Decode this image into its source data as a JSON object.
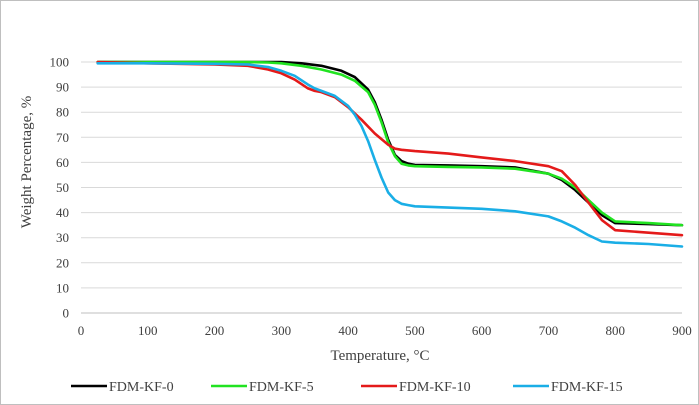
{
  "chart_data": {
    "type": "line",
    "title": "",
    "xlabel": "Temperature, °C",
    "ylabel": "Weight Percentage, %",
    "xlim": [
      0,
      900
    ],
    "ylim": [
      0,
      100
    ],
    "x_ticks": [
      0,
      100,
      200,
      300,
      400,
      500,
      600,
      700,
      800,
      900
    ],
    "y_ticks": [
      0,
      10,
      20,
      30,
      40,
      50,
      60,
      70,
      80,
      90,
      100
    ],
    "grid": "horizontal",
    "legend_position": "bottom",
    "series": [
      {
        "name": "FDM-KF-0",
        "color": "#000000",
        "x": [
          25,
          100,
          200,
          250,
          300,
          330,
          360,
          390,
          410,
          430,
          440,
          450,
          460,
          470,
          480,
          490,
          500,
          550,
          600,
          650,
          700,
          720,
          740,
          760,
          780,
          800,
          850,
          900
        ],
        "y": [
          100,
          100,
          100,
          100,
          100,
          99.5,
          98.5,
          96.5,
          94,
          89,
          84,
          77,
          69,
          63,
          60.5,
          59.5,
          59,
          58.8,
          58.5,
          58,
          55.5,
          53,
          49,
          44,
          39,
          35.8,
          35.4,
          35
        ]
      },
      {
        "name": "FDM-KF-5",
        "color": "#21e321",
        "x": [
          25,
          100,
          200,
          250,
          280,
          300,
          330,
          360,
          390,
          410,
          430,
          440,
          450,
          460,
          470,
          480,
          490,
          500,
          550,
          600,
          650,
          700,
          720,
          740,
          760,
          780,
          800,
          850,
          900
        ],
        "y": [
          100,
          100,
          100,
          100,
          99.8,
          99.5,
          98.5,
          97,
          95,
          92.5,
          88,
          83,
          76,
          68,
          62.5,
          59.5,
          58.8,
          58.5,
          58.2,
          58,
          57.5,
          55.5,
          53.5,
          50,
          45,
          40,
          36.5,
          35.8,
          35
        ]
      },
      {
        "name": "FDM-KF-10",
        "color": "#e41a1a",
        "x": [
          25,
          100,
          200,
          250,
          280,
          300,
          320,
          340,
          350,
          360,
          380,
          400,
          420,
          440,
          460,
          470,
          480,
          490,
          500,
          550,
          600,
          650,
          700,
          720,
          740,
          760,
          780,
          800,
          850,
          900
        ],
        "y": [
          100,
          99.5,
          99,
          98.5,
          97,
          95.5,
          93,
          89.5,
          88.5,
          88,
          86,
          82,
          77,
          71.5,
          67,
          65.5,
          65,
          64.8,
          64.5,
          63.5,
          62,
          60.5,
          58.5,
          56.5,
          51,
          44,
          37,
          33,
          32,
          31
        ]
      },
      {
        "name": "FDM-KF-15",
        "color": "#1aaee6",
        "x": [
          25,
          100,
          200,
          250,
          280,
          300,
          320,
          340,
          350,
          360,
          380,
          400,
          410,
          420,
          430,
          440,
          450,
          460,
          470,
          480,
          490,
          500,
          550,
          600,
          650,
          700,
          720,
          740,
          760,
          780,
          800,
          850,
          900
        ],
        "y": [
          99.5,
          99.5,
          99.3,
          99,
          98,
          96.5,
          94.5,
          91,
          89.5,
          88.5,
          86.5,
          82.5,
          79,
          74.5,
          68.5,
          61,
          54,
          48,
          45,
          43.5,
          43,
          42.5,
          42,
          41.5,
          40.5,
          38.5,
          36.5,
          34,
          31,
          28.5,
          28,
          27.5,
          26.5
        ]
      }
    ]
  }
}
